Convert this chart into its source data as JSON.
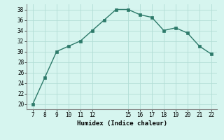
{
  "x": [
    7,
    8,
    9,
    10,
    11,
    12,
    13,
    14,
    15,
    16,
    17,
    18,
    19,
    20,
    21,
    22
  ],
  "y": [
    20,
    25,
    30,
    31,
    32,
    34,
    36,
    38,
    38,
    37,
    36.5,
    34,
    34.5,
    33.5,
    31,
    29.5
  ],
  "xlim": [
    6.5,
    22.5
  ],
  "ylim": [
    19,
    39
  ],
  "xticks": [
    7,
    8,
    9,
    10,
    11,
    12,
    15,
    16,
    17,
    18,
    19,
    20,
    21,
    22
  ],
  "yticks": [
    20,
    22,
    24,
    26,
    28,
    30,
    32,
    34,
    36,
    38
  ],
  "xlabel": "Humidex (Indice chaleur)",
  "line_color": "#2d7a6a",
  "marker_color": "#2d7a6a",
  "bg_color": "#d6f5ef",
  "grid_color": "#b2ddd5",
  "spine_color": "#888888"
}
